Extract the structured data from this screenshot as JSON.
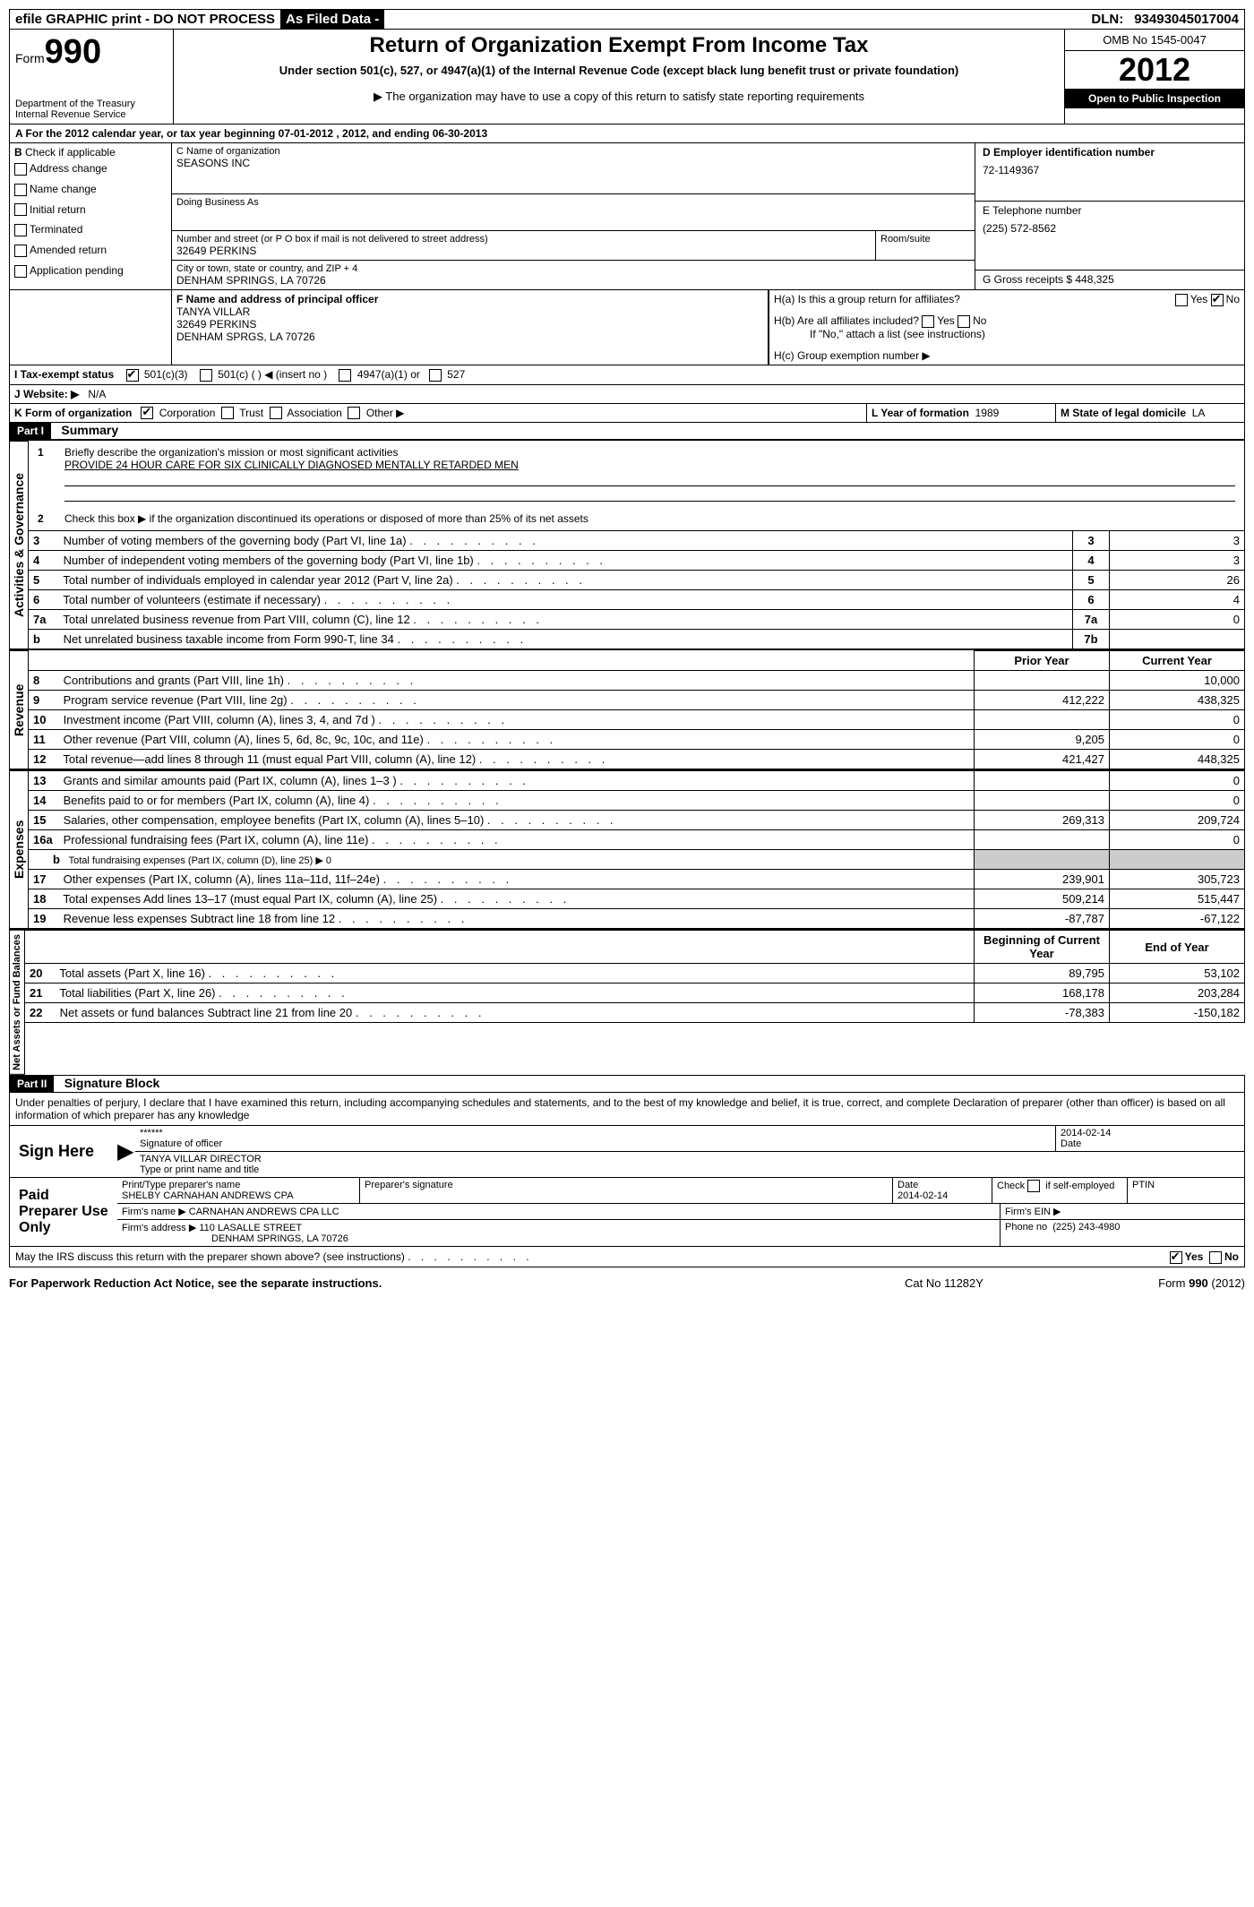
{
  "topbar": {
    "efile": "efile GRAPHIC print - DO NOT PROCESS",
    "asfiled": "As Filed Data -",
    "dln_label": "DLN:",
    "dln": "93493045017004"
  },
  "header": {
    "form_label": "Form",
    "form_num": "990",
    "dept": "Department of the Treasury",
    "irs": "Internal Revenue Service",
    "title": "Return of Organization Exempt From Income Tax",
    "subtitle": "Under section 501(c), 527, or 4947(a)(1) of the Internal Revenue Code (except black lung benefit trust or private foundation)",
    "copy_note": "▶ The organization may have to use a copy of this return to satisfy state reporting requirements",
    "omb": "OMB No 1545-0047",
    "year": "2012",
    "open": "Open to Public Inspection"
  },
  "line_a": "A  For the 2012 calendar year, or tax year beginning 07-01-2012    , 2012, and ending 06-30-2013",
  "section_b": {
    "label": "B",
    "check_if": "Check if applicable",
    "items": [
      "Address change",
      "Name change",
      "Initial return",
      "Terminated",
      "Amended return",
      "Application pending"
    ]
  },
  "section_c": {
    "name_label": "C Name of organization",
    "name": "SEASONS INC",
    "dba_label": "Doing Business As",
    "dba": "",
    "street_label": "Number and street (or P O  box if mail is not delivered to street address)",
    "room_label": "Room/suite",
    "street": "32649 PERKINS",
    "city_label": "City or town, state or country, and ZIP + 4",
    "city": "DENHAM SPRINGS, LA  70726"
  },
  "section_d": {
    "label": "D Employer identification number",
    "ein": "72-1149367"
  },
  "section_e": {
    "label": "E Telephone number",
    "phone": "(225) 572-8562"
  },
  "section_g": {
    "label": "G Gross receipts $",
    "amount": "448,325"
  },
  "section_f": {
    "label": "F    Name and address of principal officer",
    "name": "TANYA VILLAR",
    "street": "32649 PERKINS",
    "city": "DENHAM SPRGS, LA  70726"
  },
  "section_h": {
    "ha": "H(a)  Is this a group return for affiliates?",
    "hb": "H(b)  Are all affiliates included?",
    "hb_note": "If \"No,\" attach a list  (see instructions)",
    "hc": "H(c)   Group exemption number ▶",
    "yes": "Yes",
    "no": "No"
  },
  "line_i": {
    "label": "I   Tax-exempt status",
    "opts": [
      "501(c)(3)",
      "501(c) (   ) ◀ (insert no )",
      "4947(a)(1) or",
      "527"
    ]
  },
  "line_j": {
    "label": "J  Website: ▶",
    "value": "N/A"
  },
  "line_k": {
    "label": "K Form of organization",
    "opts": [
      "Corporation",
      "Trust",
      "Association",
      "Other ▶"
    ]
  },
  "line_l": {
    "label": "L Year of formation",
    "value": "1989"
  },
  "line_m": {
    "label": "M State of legal domicile",
    "value": "LA"
  },
  "part1": {
    "label": "Part I",
    "title": "Summary",
    "q1": "Briefly describe the organization's mission or most significant activities",
    "mission": "PROVIDE 24 HOUR CARE FOR SIX CLINICALLY DIAGNOSED MENTALLY RETARDED MEN",
    "q2": "Check this box ▶        if the organization discontinued its operations or disposed of more than 25% of its net assets",
    "lines_top": [
      {
        "n": "3",
        "t": "Number of voting members of the governing body (Part VI, line 1a)",
        "l": "3",
        "v": "3"
      },
      {
        "n": "4",
        "t": "Number of independent voting members of the governing body (Part VI, line 1b)",
        "l": "4",
        "v": "3"
      },
      {
        "n": "5",
        "t": "Total number of individuals employed in calendar year 2012 (Part V, line 2a)",
        "l": "5",
        "v": "26"
      },
      {
        "n": "6",
        "t": "Total number of volunteers (estimate if necessary)",
        "l": "6",
        "v": "4"
      },
      {
        "n": "7a",
        "t": "Total unrelated business revenue from Part VIII, column (C), line 12",
        "l": "7a",
        "v": "0"
      },
      {
        "n": "b",
        "t": "Net unrelated business taxable income from Form 990-T, line 34",
        "l": "7b",
        "v": ""
      }
    ],
    "col_headers": {
      "prior": "Prior Year",
      "current": "Current Year",
      "begin": "Beginning of Current Year",
      "end": "End of Year"
    },
    "revenue": [
      {
        "n": "8",
        "t": "Contributions and grants (Part VIII, line 1h)",
        "p": "",
        "c": "10,000"
      },
      {
        "n": "9",
        "t": "Program service revenue (Part VIII, line 2g)",
        "p": "412,222",
        "c": "438,325"
      },
      {
        "n": "10",
        "t": "Investment income (Part VIII, column (A), lines 3, 4, and 7d )",
        "p": "",
        "c": "0"
      },
      {
        "n": "11",
        "t": "Other revenue (Part VIII, column (A), lines 5, 6d, 8c, 9c, 10c, and 11e)",
        "p": "9,205",
        "c": "0"
      },
      {
        "n": "12",
        "t": "Total revenue—add lines 8 through 11 (must equal Part VIII, column (A), line 12)",
        "p": "421,427",
        "c": "448,325"
      }
    ],
    "expenses": [
      {
        "n": "13",
        "t": "Grants and similar amounts paid (Part IX, column (A), lines 1–3 )",
        "p": "",
        "c": "0"
      },
      {
        "n": "14",
        "t": "Benefits paid to or for members (Part IX, column (A), line 4)",
        "p": "",
        "c": "0"
      },
      {
        "n": "15",
        "t": "Salaries, other compensation, employee benefits (Part IX, column (A), lines 5–10)",
        "p": "269,313",
        "c": "209,724"
      },
      {
        "n": "16a",
        "t": "Professional fundraising fees (Part IX, column (A), line 11e)",
        "p": "",
        "c": "0"
      },
      {
        "n": "b",
        "t": "Total fundraising expenses (Part IX, column (D), line 25) ▶ 0",
        "p": "",
        "c": "",
        "gray": true
      },
      {
        "n": "17",
        "t": "Other expenses (Part IX, column (A), lines 11a–11d, 11f–24e)",
        "p": "239,901",
        "c": "305,723"
      },
      {
        "n": "18",
        "t": "Total expenses  Add lines 13–17 (must equal Part IX, column (A), line 25)",
        "p": "509,214",
        "c": "515,447"
      },
      {
        "n": "19",
        "t": "Revenue less expenses  Subtract line 18 from line 12",
        "p": "-87,787",
        "c": "-67,122"
      }
    ],
    "net": [
      {
        "n": "20",
        "t": "Total assets (Part X, line 16)",
        "p": "89,795",
        "c": "53,102"
      },
      {
        "n": "21",
        "t": "Total liabilities (Part X, line 26)",
        "p": "168,178",
        "c": "203,284"
      },
      {
        "n": "22",
        "t": "Net assets or fund balances  Subtract line 21 from line 20",
        "p": "-78,383",
        "c": "-150,182"
      }
    ],
    "side_labels": {
      "ag": "Activities & Governance",
      "rev": "Revenue",
      "exp": "Expenses",
      "net": "Net Assets or Fund Balances"
    }
  },
  "part2": {
    "label": "Part II",
    "title": "Signature Block",
    "jurat": "Under penalties of perjury, I declare that I have examined this return, including accompanying schedules and statements, and to the best of my knowledge and belief, it is true, correct, and complete  Declaration of preparer (other than officer) is based on all information of which preparer has any knowledge",
    "sign_here": "Sign Here",
    "sig_stars": "******",
    "sig_of_officer": "Signature of officer",
    "sig_date": "2014-02-14",
    "date_label": "Date",
    "officer_name": "TANYA VILLAR  DIRECTOR",
    "type_name": "Type or print name and title",
    "paid": "Paid Preparer Use Only",
    "prep_name_label": "Print/Type preparer's name",
    "prep_name": "SHELBY CARNAHAN ANDREWS CPA",
    "prep_sig_label": "Preparer's signature",
    "prep_date": "2014-02-14",
    "check_self": "Check          if self-employed",
    "ptin": "PTIN",
    "firm_name_label": "Firm's name      ▶",
    "firm_name": "CARNAHAN ANDREWS CPA LLC",
    "firm_ein": "Firm's EIN ▶",
    "firm_addr_label": "Firm's address ▶",
    "firm_addr1": "110 LASALLE STREET",
    "firm_addr2": "DENHAM SPRINGS, LA  70726",
    "firm_phone_label": "Phone no",
    "firm_phone": "(225) 243-4980",
    "discuss": "May the IRS discuss this return with the preparer shown above? (see instructions)",
    "yes": "Yes",
    "no": "No"
  },
  "footer": {
    "left": "For Paperwork Reduction Act Notice, see the separate instructions.",
    "mid": "Cat No 11282Y",
    "right": "Form 990 (2012)"
  }
}
